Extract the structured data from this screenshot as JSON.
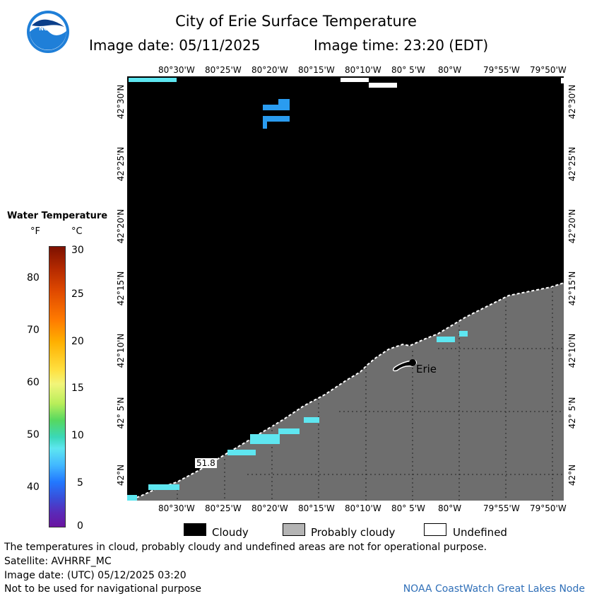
{
  "header": {
    "title": "City of Erie Surface Temperature",
    "image_date": "Image date: 05/11/2025",
    "image_time": "Image time: 23:20 (EDT)",
    "logo_text": "NOAA"
  },
  "map": {
    "lon_labels": [
      "80°30'W",
      "80°25'W",
      "80°20'W",
      "80°15'W",
      "80°10'W",
      "80° 5'W",
      "80°W",
      "79°55'W",
      "79°50'W"
    ],
    "lat_labels": [
      "42°30'N",
      "42°25'N",
      "42°20'N",
      "42°15'N",
      "42°10'N",
      "42° 5'N",
      "42°N"
    ],
    "city_label": "Erie",
    "temp_reading": "51.8"
  },
  "legend": {
    "title": "Water Temperature",
    "unit_f": "°F",
    "unit_c": "°C",
    "f_ticks": [
      "80",
      "70",
      "60",
      "50",
      "40"
    ],
    "c_ticks": [
      "30",
      "25",
      "20",
      "15",
      "10",
      "5",
      "0"
    ],
    "categories": [
      {
        "label": "Cloudy",
        "color": "#000000"
      },
      {
        "label": "Probably cloudy",
        "color": "#b4b4b4"
      },
      {
        "label": "Undefined",
        "color": "#ffffff"
      }
    ]
  },
  "footer": {
    "disclaimer": "The temperatures in cloud, probably cloudy and undefined areas are not for operational purpose.",
    "satellite": "Satellite: AVHRRF_MC",
    "utc_date": "Image date: (UTC) 05/12/2025  03:20",
    "nav_warning": "Not to be used for navigational purpose",
    "credit": "NOAA CoastWatch Great Lakes Node"
  },
  "colors": {
    "land": "#6e6e6e",
    "cloud": "#000000",
    "water_cyan": "#5ee6f0",
    "water_blue": "#2a9cf0"
  }
}
